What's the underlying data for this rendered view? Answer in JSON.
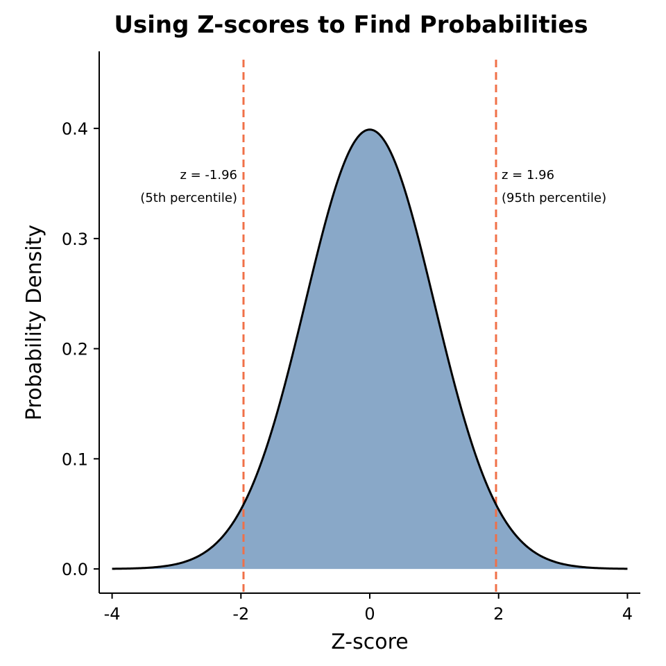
{
  "chart_data": {
    "type": "area",
    "title": "Using Z-scores to Find Probabilities",
    "xlabel": "Z-score",
    "ylabel": "Probability Density",
    "xlim": [
      -4.2,
      4.2
    ],
    "ylim": [
      -0.022,
      0.47
    ],
    "x_ticks": [
      -4,
      -2,
      0,
      2,
      4
    ],
    "x_tick_labels": [
      "-4",
      "-2",
      "0",
      "2",
      "4"
    ],
    "y_ticks": [
      0.0,
      0.1,
      0.2,
      0.3,
      0.4
    ],
    "y_tick_labels": [
      "0.0",
      "0.1",
      "0.2",
      "0.3",
      "0.4"
    ],
    "curve": {
      "distribution": "standard normal",
      "x_range": [
        -4,
        4
      ],
      "fill_color": "#89a8c8",
      "line_color": "#000000"
    },
    "reference_lines": [
      {
        "x": -1.96,
        "color": "#f07048",
        "style": "dashed"
      },
      {
        "x": 1.96,
        "color": "#f07048",
        "style": "dashed"
      }
    ],
    "annotations": [
      {
        "lines": [
          "z = -1.96",
          "(5th percentile)"
        ],
        "x": -1.96,
        "align": "right"
      },
      {
        "lines": [
          "z = 1.96",
          "(95th percentile)"
        ],
        "x": 1.96,
        "align": "left"
      }
    ],
    "grid": false,
    "legend": "none"
  }
}
